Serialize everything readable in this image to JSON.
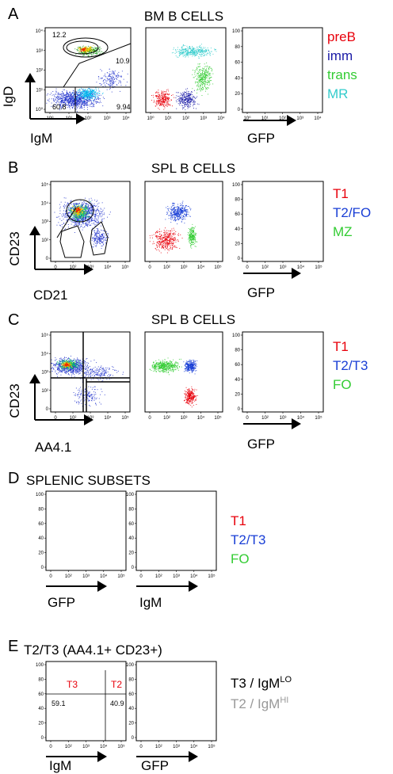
{
  "panels": {
    "A": {
      "letter": "A",
      "title": "BM B CELLS",
      "xlabel_dot": "IgM",
      "ylabel_dot": "IgD",
      "xlabel_hist": "GFP",
      "gates": {
        "upper": "12.2",
        "mid": "10.9",
        "lower_left": "60.8",
        "lower_right": "9.94"
      },
      "legend": [
        "preB",
        "imm",
        "trans",
        "MR"
      ],
      "legend_colors": [
        "#e8000b",
        "#1a1aa6",
        "#33cc33",
        "#33cccc"
      ]
    },
    "B": {
      "letter": "B",
      "title": "SPL B CELLS",
      "xlabel_dot": "CD21",
      "ylabel_dot": "CD23",
      "xlabel_hist": "GFP",
      "legend": [
        "T1",
        "T2/FO",
        "MZ"
      ],
      "legend_colors": [
        "#e8000b",
        "#1a3fd6",
        "#33cc33"
      ]
    },
    "C": {
      "letter": "C",
      "title": "SPL B CELLS",
      "xlabel_dot": "AA4.1",
      "ylabel_dot": "CD23",
      "xlabel_hist": "GFP",
      "legend": [
        "T1",
        "T2/T3",
        "FO"
      ],
      "legend_colors": [
        "#e8000b",
        "#1a3fd6",
        "#33cc33"
      ]
    },
    "D": {
      "letter": "D",
      "title": "SPLENIC SUBSETS",
      "xlabel_left": "GFP",
      "xlabel_right": "IgM",
      "legend": [
        "T1",
        "T2/T3",
        "FO"
      ],
      "legend_colors": [
        "#e8000b",
        "#1a3fd6",
        "#33cc33"
      ]
    },
    "E": {
      "letter": "E",
      "title": "T2/T3 (AA4.1+ CD23+)",
      "xlabel_left": "IgM",
      "xlabel_right": "GFP",
      "gate_labels": {
        "left": "T3",
        "right": "T2",
        "left_pct": "59.1",
        "right_pct": "40.9"
      },
      "legend": [
        {
          "main": "T3 / IgM",
          "sup": "LO",
          "color": "#000000"
        },
        {
          "main": "T2 / IgM",
          "sup": "HI",
          "color": "#999999"
        }
      ]
    }
  },
  "ticks": {
    "log4": [
      "10⁰",
      "10¹",
      "10²",
      "10³",
      "10⁴"
    ],
    "log5": [
      "0",
      "10²",
      "10³",
      "10⁴",
      "10⁵"
    ],
    "hist_y": [
      "0",
      "20",
      "40",
      "60",
      "80",
      "100"
    ]
  }
}
